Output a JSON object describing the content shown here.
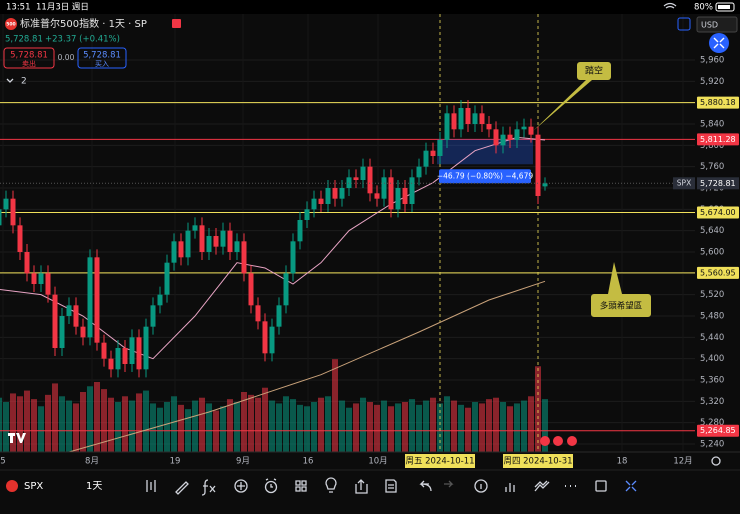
{
  "status_bar": {
    "time": "13:51",
    "date": "11月3日 週日",
    "battery": "80%"
  },
  "header": {
    "logo": "500",
    "symbol": "标准普尔500指数 · 1天 · SP",
    "price": "5,728.81",
    "change": "+23.37 (+0.41%)",
    "sell_price": "5,728.81",
    "sell_label": "卖出",
    "spread": "0.00",
    "buy_price": "5,728.81",
    "buy_label": "买入",
    "indicator_count": "2",
    "currency": "USD"
  },
  "chart_data": {
    "type": "candlestick",
    "open": [
      5650,
      5680,
      5700,
      5650,
      5600,
      5560,
      5540,
      5560,
      5520,
      5420,
      5480,
      5500,
      5460,
      5440,
      5590,
      5430,
      5400,
      5380,
      5420,
      5390,
      5440,
      5380,
      5460,
      5500,
      5520,
      5580,
      5620,
      5590,
      5640,
      5650,
      5600,
      5630,
      5610,
      5640,
      5600,
      5620,
      5560,
      5500,
      5470,
      5410,
      5460,
      5500,
      5560,
      5620,
      5660,
      5680,
      5700,
      5690,
      5720,
      5700,
      5720,
      5740,
      5735,
      5760,
      5710,
      5700,
      5740,
      5680,
      5720,
      5690,
      5740,
      5760,
      5790,
      5780,
      5810,
      5860,
      5830,
      5870,
      5840,
      5860,
      5840,
      5830,
      5800,
      5820,
      5810,
      5830,
      5835,
      5820,
      5723
    ],
    "high": [
      5695,
      5715,
      5715,
      5665,
      5615,
      5575,
      5575,
      5575,
      5535,
      5495,
      5515,
      5515,
      5475,
      5605,
      5605,
      5445,
      5415,
      5435,
      5435,
      5455,
      5455,
      5475,
      5515,
      5535,
      5595,
      5635,
      5635,
      5655,
      5665,
      5665,
      5645,
      5645,
      5655,
      5655,
      5635,
      5635,
      5575,
      5515,
      5485,
      5475,
      5515,
      5575,
      5635,
      5675,
      5695,
      5715,
      5715,
      5735,
      5735,
      5735,
      5755,
      5755,
      5775,
      5775,
      5725,
      5755,
      5755,
      5735,
      5735,
      5755,
      5775,
      5805,
      5805,
      5825,
      5875,
      5875,
      5885,
      5885,
      5875,
      5875,
      5855,
      5845,
      5835,
      5835,
      5845,
      5850,
      5850,
      5835,
      5740
    ],
    "low": [
      5635,
      5665,
      5635,
      5585,
      5545,
      5525,
      5525,
      5505,
      5405,
      5405,
      5465,
      5445,
      5425,
      5425,
      5415,
      5385,
      5365,
      5365,
      5375,
      5375,
      5365,
      5365,
      5445,
      5485,
      5505,
      5565,
      5575,
      5575,
      5625,
      5585,
      5585,
      5595,
      5595,
      5585,
      5585,
      5545,
      5485,
      5455,
      5395,
      5395,
      5445,
      5485,
      5545,
      5605,
      5645,
      5665,
      5675,
      5675,
      5685,
      5685,
      5705,
      5720,
      5720,
      5695,
      5685,
      5685,
      5665,
      5665,
      5675,
      5675,
      5725,
      5745,
      5765,
      5765,
      5795,
      5815,
      5815,
      5825,
      5825,
      5825,
      5815,
      5785,
      5785,
      5795,
      5795,
      5815,
      5805,
      5690,
      5715
    ],
    "close": [
      5680,
      5700,
      5650,
      5600,
      5560,
      5540,
      5560,
      5520,
      5420,
      5480,
      5500,
      5460,
      5440,
      5590,
      5430,
      5400,
      5380,
      5420,
      5390,
      5440,
      5380,
      5460,
      5500,
      5520,
      5580,
      5620,
      5590,
      5640,
      5650,
      5600,
      5630,
      5610,
      5640,
      5600,
      5620,
      5560,
      5500,
      5470,
      5410,
      5460,
      5500,
      5560,
      5620,
      5660,
      5680,
      5700,
      5690,
      5720,
      5700,
      5720,
      5740,
      5735,
      5760,
      5710,
      5700,
      5740,
      5680,
      5720,
      5690,
      5740,
      5760,
      5790,
      5780,
      5810,
      5860,
      5830,
      5870,
      5840,
      5860,
      5840,
      5830,
      5800,
      5820,
      5810,
      5830,
      5835,
      5820,
      5705,
      5728.81
    ],
    "volume": [
      3.8,
      3.5,
      4.1,
      3.9,
      4.3,
      3.7,
      3.2,
      4.0,
      4.8,
      3.9,
      3.6,
      3.4,
      4.2,
      4.6,
      4.9,
      4.4,
      3.8,
      3.5,
      3.9,
      3.6,
      4.1,
      4.3,
      3.4,
      3.1,
      3.5,
      3.9,
      3.3,
      3.0,
      3.6,
      3.8,
      3.4,
      2.9,
      3.2,
      3.7,
      3.5,
      4.2,
      4.0,
      3.8,
      4.5,
      3.6,
      3.4,
      3.9,
      3.7,
      3.3,
      3.2,
      3.5,
      3.8,
      3.9,
      6.5,
      3.6,
      3.1,
      3.4,
      3.8,
      3.5,
      3.3,
      3.6,
      3.2,
      3.4,
      3.5,
      3.7,
      3.3,
      3.6,
      3.8,
      3.4,
      3.9,
      3.6,
      3.3,
      3.1,
      3.5,
      3.4,
      3.7,
      3.8,
      3.5,
      3.2,
      3.4,
      3.6,
      3.9,
      6.0,
      3.7
    ],
    "up_color": "#089981",
    "down_color": "#f23645",
    "ylim": [
      5225,
      6046.25
    ],
    "yticks": [
      {
        "value": 5960,
        "label": "5,960"
      },
      {
        "value": 5920,
        "label": "5,920"
      },
      {
        "value": 5880,
        "label": "5,880"
      },
      {
        "value": 5840,
        "label": "5,840"
      },
      {
        "value": 5800,
        "label": "5,800"
      },
      {
        "value": 5760,
        "label": "5,760"
      },
      {
        "value": 5720,
        "label": "5,720"
      },
      {
        "value": 5680,
        "label": "5,680"
      },
      {
        "value": 5640,
        "label": "5,640"
      },
      {
        "value": 5600,
        "label": "5,600"
      },
      {
        "value": 5560,
        "label": "5,560"
      },
      {
        "value": 5520,
        "label": "5,520"
      },
      {
        "value": 5480,
        "label": "5,480"
      },
      {
        "value": 5440,
        "label": "5,440"
      },
      {
        "value": 5400,
        "label": "5,400"
      },
      {
        "value": 5360,
        "label": "5,360"
      },
      {
        "value": 5320,
        "label": "5,320"
      },
      {
        "value": 5280,
        "label": "5,280"
      },
      {
        "value": 5240,
        "label": "5,240"
      }
    ],
    "x_labels": [
      "5",
      "8月",
      "19",
      "9月",
      "16",
      "10月",
      "18",
      "12月"
    ],
    "highlighted_dates": [
      "周五 2024-10-11",
      "周四 2024-10-31"
    ],
    "moving_averages": [
      {
        "color": "#e8a4c4",
        "x": [
          0,
          6,
          12,
          18,
          22,
          28,
          34,
          38,
          42,
          46,
          50,
          56,
          62,
          68,
          74,
          78
        ],
        "values": [
          5530,
          5520,
          5480,
          5420,
          5400,
          5480,
          5580,
          5570,
          5540,
          5580,
          5640,
          5690,
          5730,
          5790,
          5815,
          5810
        ]
      },
      {
        "color": "#c9a27a",
        "x": [
          10,
          14,
          30,
          46,
          60,
          70,
          78
        ],
        "values": [
          5225,
          5240,
          5300,
          5370,
          5450,
          5510,
          5545
        ]
      }
    ],
    "levels": [
      {
        "value": 5880.18,
        "label": "5,880.18",
        "color": "#f0e05a"
      },
      {
        "value": 5811.28,
        "label": "5,811.28",
        "color": "#f23645"
      },
      {
        "value": 5674.0,
        "label": "5,674.00",
        "color": "#f0e05a"
      },
      {
        "value": 5560.95,
        "label": "5,560.95",
        "color": "#f0e05a"
      },
      {
        "value": 5264.85,
        "label": "5,264.85",
        "color": "#f23645"
      }
    ],
    "last_price": {
      "symbol": "SPX",
      "value": 5728.81,
      "label": "5,728.81"
    },
    "measure": {
      "from": 5811.28,
      "to": 5764.49,
      "label": "−46.79 (−0.80%) −4,679"
    },
    "annotations": [
      "踏空",
      "多頭希望區"
    ]
  },
  "toolbar": {
    "symbol": "SPX",
    "interval": "1天"
  }
}
